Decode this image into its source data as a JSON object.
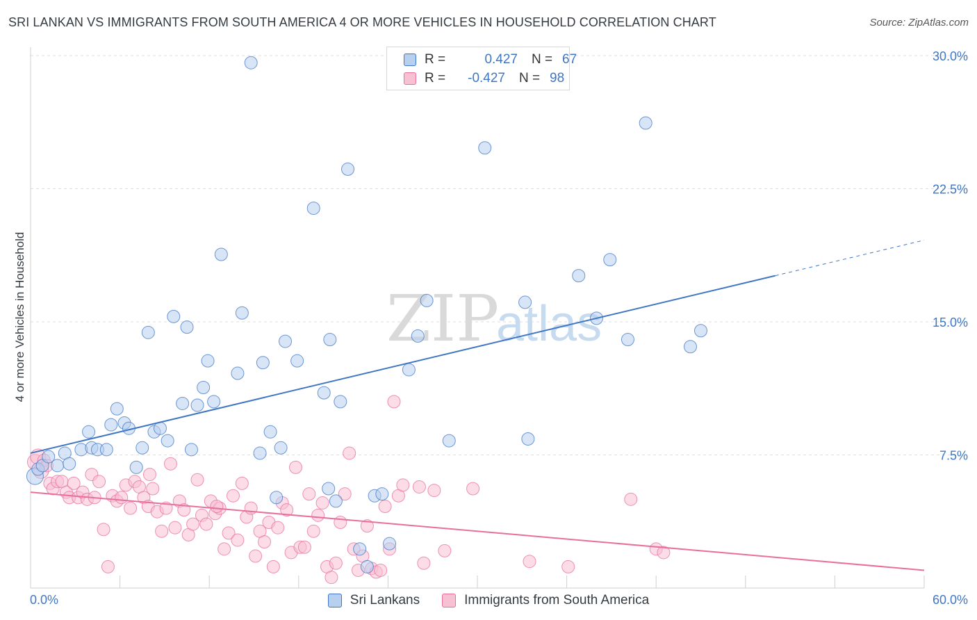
{
  "title": "SRI LANKAN VS IMMIGRANTS FROM SOUTH AMERICA 4 OR MORE VEHICLES IN HOUSEHOLD CORRELATION CHART",
  "source": "Source: ZipAtlas.com",
  "watermark": {
    "zip": "ZIP",
    "atlas": "atlas"
  },
  "colors": {
    "blue": "#3f76c4",
    "blue_fill": "#b7d0f0",
    "pink": "#e86f9c",
    "pink_fill": "#f7c0d3"
  },
  "legend": {
    "rows": [
      {
        "r_label": "R =",
        "r_value": "0.427",
        "n_label": "N =",
        "n_value": "67"
      },
      {
        "r_label": "R =",
        "r_value": "-0.427",
        "n_label": "N =",
        "n_value": "98"
      }
    ]
  },
  "bottom_legend": [
    "Sri Lankans",
    "Immigrants from South America"
  ],
  "chart_data": {
    "type": "scatter",
    "title": "SRI LANKAN VS IMMIGRANTS FROM SOUTH AMERICA 4 OR MORE VEHICLES IN HOUSEHOLD CORRELATION CHART",
    "xlabel": "",
    "ylabel": "4 or more Vehicles in Household",
    "xlim": [
      0,
      60
    ],
    "ylim": [
      0,
      30
    ],
    "x_tick_labels": [
      "0.0%",
      "60.0%"
    ],
    "y_ticks": [
      7.5,
      15.0,
      22.5,
      30.0
    ],
    "y_tick_labels": [
      "7.5%",
      "15.0%",
      "22.5%",
      "30.0%"
    ],
    "grid": true,
    "legend_position": "top-center",
    "series": [
      {
        "name": "Sri Lankans",
        "color": "#3f76c4",
        "r": 0.427,
        "n": 67,
        "trend": {
          "x0": 0,
          "y0": 7.6,
          "x1": 50,
          "y1": 17.6,
          "dashed_to_x": 60,
          "dashed_to_y": 19.6
        },
        "points": [
          [
            0.3,
            6.3
          ],
          [
            0.5,
            6.7
          ],
          [
            0.8,
            6.9
          ],
          [
            1.2,
            7.4
          ],
          [
            1.8,
            6.9
          ],
          [
            2.3,
            7.6
          ],
          [
            2.6,
            7.0
          ],
          [
            3.4,
            7.8
          ],
          [
            3.9,
            8.8
          ],
          [
            4.1,
            7.9
          ],
          [
            4.5,
            7.8
          ],
          [
            5.1,
            7.8
          ],
          [
            5.4,
            9.2
          ],
          [
            5.8,
            10.1
          ],
          [
            6.3,
            9.3
          ],
          [
            6.6,
            9.0
          ],
          [
            7.1,
            6.8
          ],
          [
            7.5,
            7.9
          ],
          [
            7.9,
            14.4
          ],
          [
            8.3,
            8.8
          ],
          [
            8.7,
            9.0
          ],
          [
            9.2,
            8.3
          ],
          [
            9.6,
            15.3
          ],
          [
            10.2,
            10.4
          ],
          [
            10.5,
            14.7
          ],
          [
            10.8,
            7.8
          ],
          [
            11.2,
            10.3
          ],
          [
            11.6,
            11.3
          ],
          [
            11.9,
            12.8
          ],
          [
            12.3,
            10.5
          ],
          [
            12.8,
            18.8
          ],
          [
            13.9,
            12.1
          ],
          [
            14.2,
            15.5
          ],
          [
            14.8,
            29.6
          ],
          [
            15.4,
            7.6
          ],
          [
            15.6,
            12.7
          ],
          [
            16.1,
            8.8
          ],
          [
            16.5,
            5.1
          ],
          [
            16.8,
            7.9
          ],
          [
            17.1,
            13.9
          ],
          [
            17.9,
            12.8
          ],
          [
            19.0,
            21.4
          ],
          [
            19.7,
            11.0
          ],
          [
            20.1,
            14.0
          ],
          [
            20.5,
            4.9
          ],
          [
            20.8,
            10.5
          ],
          [
            21.3,
            23.6
          ],
          [
            22.1,
            2.2
          ],
          [
            22.6,
            1.2
          ],
          [
            23.1,
            5.2
          ],
          [
            23.6,
            5.3
          ],
          [
            24.1,
            2.5
          ],
          [
            25.4,
            12.3
          ],
          [
            26.0,
            14.2
          ],
          [
            26.6,
            16.2
          ],
          [
            28.1,
            8.3
          ],
          [
            30.5,
            24.8
          ],
          [
            33.2,
            16.1
          ],
          [
            33.4,
            8.4
          ],
          [
            36.8,
            17.6
          ],
          [
            38.0,
            15.2
          ],
          [
            38.9,
            18.5
          ],
          [
            40.1,
            14.0
          ],
          [
            41.3,
            26.2
          ],
          [
            44.3,
            13.6
          ],
          [
            45.0,
            14.5
          ],
          [
            20.0,
            5.6
          ]
        ]
      },
      {
        "name": "Immigrants from South America",
        "color": "#e86f9c",
        "r": -0.427,
        "n": 98,
        "trend": {
          "x0": 0,
          "y0": 5.4,
          "x1": 60,
          "y1": 1.0
        },
        "points": [
          [
            0.3,
            7.1
          ],
          [
            0.5,
            7.4
          ],
          [
            0.7,
            6.6
          ],
          [
            0.9,
            7.2
          ],
          [
            1.1,
            6.9
          ],
          [
            1.3,
            5.9
          ],
          [
            1.5,
            5.6
          ],
          [
            1.8,
            6.0
          ],
          [
            2.1,
            6.0
          ],
          [
            2.4,
            5.4
          ],
          [
            2.6,
            5.1
          ],
          [
            2.9,
            5.9
          ],
          [
            3.2,
            5.1
          ],
          [
            3.5,
            5.4
          ],
          [
            3.8,
            5.0
          ],
          [
            4.1,
            6.4
          ],
          [
            4.3,
            5.1
          ],
          [
            4.6,
            6.0
          ],
          [
            4.9,
            3.3
          ],
          [
            5.2,
            1.2
          ],
          [
            5.5,
            5.2
          ],
          [
            5.8,
            4.9
          ],
          [
            6.1,
            5.1
          ],
          [
            6.4,
            5.8
          ],
          [
            6.7,
            4.5
          ],
          [
            7.0,
            6.0
          ],
          [
            7.3,
            5.7
          ],
          [
            7.6,
            5.1
          ],
          [
            7.9,
            4.6
          ],
          [
            8.2,
            5.6
          ],
          [
            8.5,
            4.3
          ],
          [
            8.8,
            3.2
          ],
          [
            9.1,
            4.5
          ],
          [
            9.4,
            7.0
          ],
          [
            9.7,
            3.4
          ],
          [
            10.0,
            4.9
          ],
          [
            10.3,
            4.4
          ],
          [
            10.6,
            3.0
          ],
          [
            10.9,
            3.6
          ],
          [
            11.2,
            6.1
          ],
          [
            11.5,
            4.1
          ],
          [
            11.8,
            3.6
          ],
          [
            12.1,
            4.9
          ],
          [
            12.4,
            4.2
          ],
          [
            12.7,
            4.5
          ],
          [
            13.0,
            2.2
          ],
          [
            13.3,
            3.1
          ],
          [
            13.6,
            5.2
          ],
          [
            13.9,
            2.7
          ],
          [
            14.2,
            5.9
          ],
          [
            14.5,
            4.0
          ],
          [
            14.8,
            4.5
          ],
          [
            15.1,
            1.8
          ],
          [
            15.4,
            3.2
          ],
          [
            15.7,
            2.6
          ],
          [
            16.0,
            3.7
          ],
          [
            16.3,
            1.2
          ],
          [
            16.6,
            3.4
          ],
          [
            16.9,
            4.8
          ],
          [
            17.2,
            4.4
          ],
          [
            17.5,
            2.0
          ],
          [
            17.8,
            6.8
          ],
          [
            18.1,
            2.3
          ],
          [
            18.4,
            2.3
          ],
          [
            18.7,
            5.3
          ],
          [
            19.0,
            3.2
          ],
          [
            19.3,
            4.1
          ],
          [
            19.6,
            4.8
          ],
          [
            19.9,
            1.2
          ],
          [
            20.2,
            0.6
          ],
          [
            20.5,
            1.4
          ],
          [
            20.8,
            3.7
          ],
          [
            21.1,
            5.3
          ],
          [
            21.4,
            7.6
          ],
          [
            21.7,
            2.2
          ],
          [
            22.0,
            1.0
          ],
          [
            22.3,
            1.8
          ],
          [
            22.6,
            3.5
          ],
          [
            22.9,
            1.1
          ],
          [
            23.2,
            0.9
          ],
          [
            23.5,
            1.0
          ],
          [
            23.8,
            4.6
          ],
          [
            24.1,
            2.2
          ],
          [
            24.4,
            10.5
          ],
          [
            24.7,
            5.2
          ],
          [
            25.0,
            5.8
          ],
          [
            26.1,
            5.7
          ],
          [
            26.4,
            1.4
          ],
          [
            27.1,
            5.5
          ],
          [
            27.8,
            2.1
          ],
          [
            29.7,
            5.6
          ],
          [
            36.1,
            1.2
          ],
          [
            40.3,
            5.0
          ],
          [
            42.0,
            2.2
          ],
          [
            42.5,
            2.0
          ],
          [
            33.5,
            1.5
          ],
          [
            12.5,
            4.6
          ],
          [
            8.0,
            6.4
          ]
        ]
      }
    ]
  }
}
